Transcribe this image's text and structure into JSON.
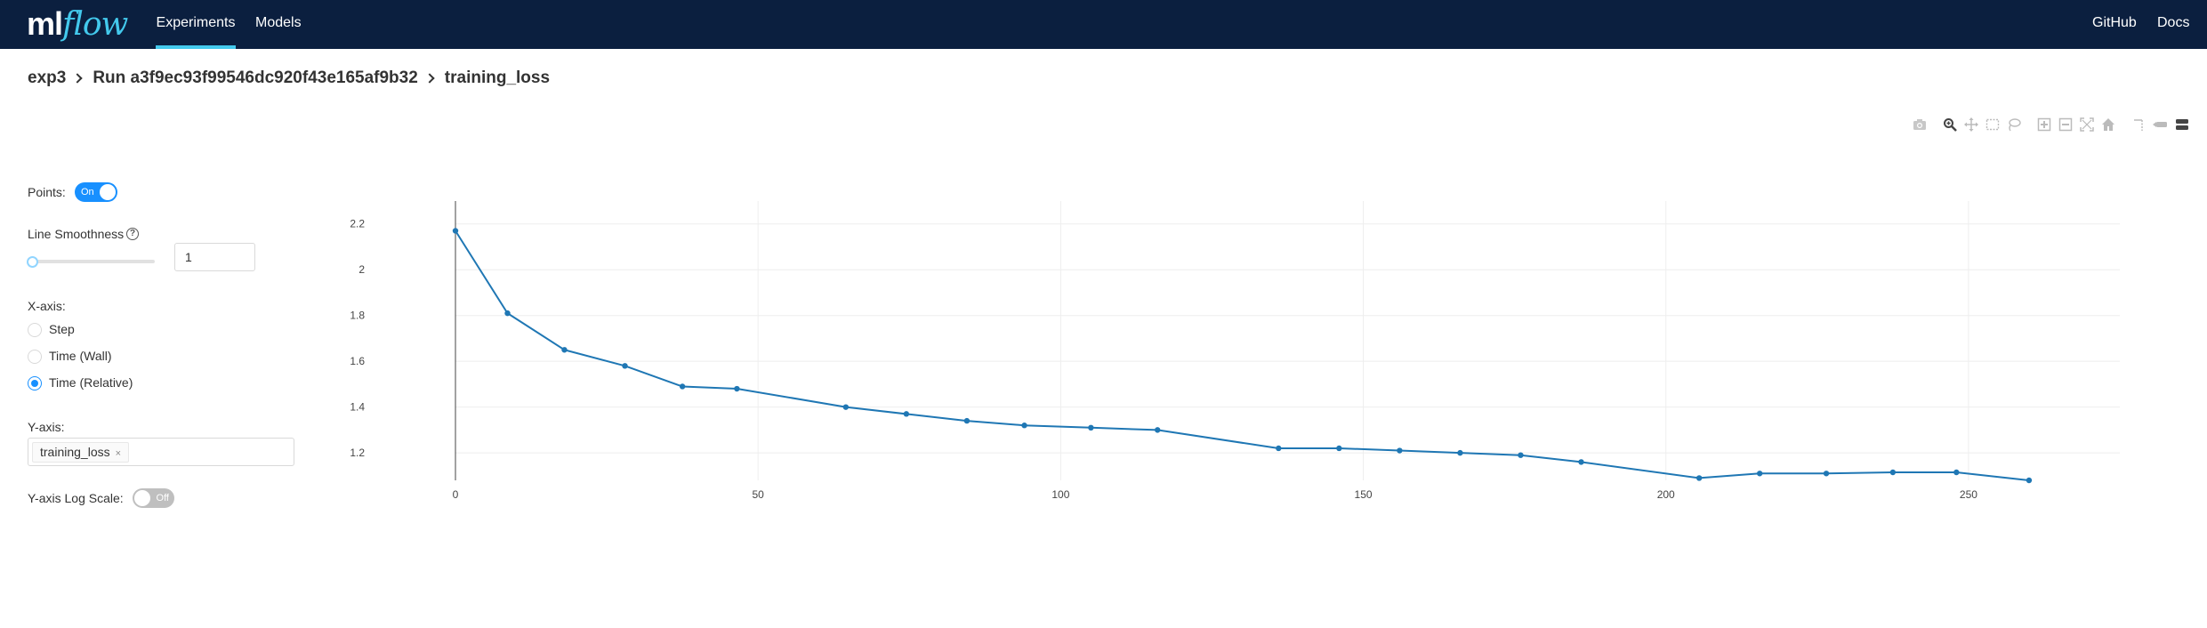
{
  "header": {
    "logo_ml": "ml",
    "logo_flow": "flow",
    "nav": [
      {
        "label": "Experiments",
        "active": true
      },
      {
        "label": "Models",
        "active": false
      }
    ],
    "right_links": [
      {
        "label": "GitHub"
      },
      {
        "label": "Docs"
      }
    ]
  },
  "breadcrumb": [
    "exp3",
    "Run a3f9ec93f99546dc920f43e165af9b32",
    "training_loss"
  ],
  "modebar": {
    "buttons": [
      "camera-icon",
      "zoom-icon",
      "pan-icon",
      "box-select-icon",
      "lasso-select-icon",
      "zoom-in-icon",
      "zoom-out-icon",
      "autoscale-icon",
      "reset-axes-icon",
      "spike-lines-icon",
      "hover-closest-icon",
      "hover-compare-icon"
    ]
  },
  "controls": {
    "points_label": "Points:",
    "points_toggle": "On",
    "smoothness_label": "Line Smoothness",
    "help_glyph": "?",
    "smoothness_value": "1",
    "smoothness_fraction": 0,
    "xaxis_label": "X-axis:",
    "xaxis_options": [
      {
        "label": "Step",
        "checked": false
      },
      {
        "label": "Time (Wall)",
        "checked": false
      },
      {
        "label": "Time (Relative)",
        "checked": true
      }
    ],
    "yaxis_label": "Y-axis:",
    "yaxis_tag": "training_loss",
    "yaxis_tag_remove": "×",
    "ylog_label": "Y-axis Log Scale:",
    "ylog_toggle": "Off"
  },
  "colors": {
    "header_bg": "#0b1f3f",
    "accent": "#43c9ed",
    "line": "#1f77b4",
    "toggle_on": "#1890ff"
  },
  "chart_data": {
    "type": "line",
    "xlim": [
      0,
      275
    ],
    "ylim": [
      1.08,
      2.3
    ],
    "xticks": [
      0,
      50,
      100,
      150,
      200,
      250
    ],
    "yticks": [
      1.2,
      1.4,
      1.6,
      1.8,
      2,
      2.2
    ],
    "xtick_labels": [
      "0",
      "50",
      "100",
      "150",
      "200",
      "250"
    ],
    "ytick_labels": [
      "1.2",
      "1.4",
      "1.6",
      "1.8",
      "2",
      "2.2"
    ],
    "grid": true,
    "series": [
      {
        "markers": true,
        "x": [
          0,
          8.6,
          18,
          28,
          37.5,
          46.5,
          64.5,
          74.5,
          84.5,
          94,
          105,
          116,
          136,
          146,
          156,
          166,
          176,
          186,
          205.5,
          215.5,
          226.5,
          237.5,
          248,
          260
        ],
        "y": [
          2.17,
          1.81,
          1.65,
          1.58,
          1.49,
          1.48,
          1.4,
          1.37,
          1.34,
          1.32,
          1.31,
          1.3,
          1.22,
          1.22,
          1.21,
          1.2,
          1.19,
          1.16,
          1.09,
          1.11,
          1.11,
          1.115,
          1.115,
          1.08
        ]
      }
    ]
  }
}
